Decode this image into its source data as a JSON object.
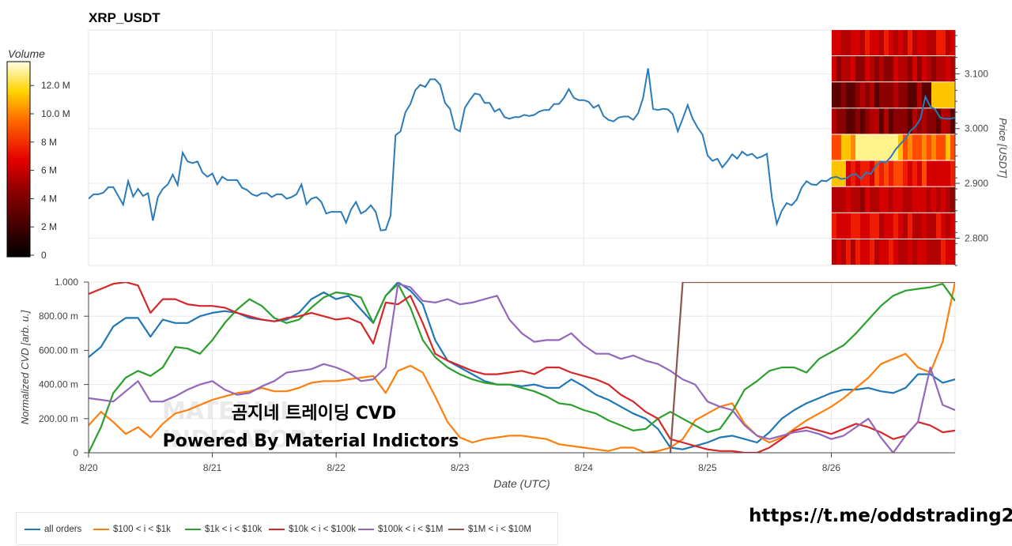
{
  "chart_data": [
    {
      "type": "line",
      "title": "XRP_USDT",
      "ylabel": "Price [USDT]",
      "ylim": [
        2.75,
        3.18
      ],
      "yticks": [
        "2.800",
        "2.900",
        "3.000",
        "3.100"
      ],
      "xlim": [
        "2025-08-20 00:00",
        "2025-08-27 00:00"
      ],
      "x": [
        0.0,
        0.04,
        0.08,
        0.12,
        0.16,
        0.2,
        0.24,
        0.28,
        0.32,
        0.36,
        0.4,
        0.44,
        0.48,
        0.52,
        0.56,
        0.6,
        0.64,
        0.68,
        0.72,
        0.76,
        0.8,
        0.84,
        0.88,
        0.92,
        0.96,
        1.0,
        1.04,
        1.08,
        1.12,
        1.16,
        1.2,
        1.24,
        1.28,
        1.32,
        1.36,
        1.4,
        1.44,
        1.48,
        1.52,
        1.56,
        1.6,
        1.64,
        1.68,
        1.72,
        1.76,
        1.8,
        1.84,
        1.88,
        1.92,
        1.96,
        2.0,
        2.04,
        2.08,
        2.12,
        2.16,
        2.2,
        2.24,
        2.28,
        2.32,
        2.36,
        2.4,
        2.44,
        2.48,
        2.52,
        2.56,
        2.6,
        2.64,
        2.68,
        2.72,
        2.76,
        2.8,
        2.84,
        2.88,
        2.92,
        2.96,
        3.0,
        3.04,
        3.08,
        3.12,
        3.16,
        3.2,
        3.24,
        3.28,
        3.32,
        3.36,
        3.4,
        3.44,
        3.48,
        3.52,
        3.56,
        3.6,
        3.64,
        3.68,
        3.72,
        3.76,
        3.8,
        3.84,
        3.88,
        3.92,
        3.96,
        4.0,
        4.04,
        4.08,
        4.12,
        4.16,
        4.2,
        4.24,
        4.28,
        4.32,
        4.36,
        4.4,
        4.44,
        4.48,
        4.52,
        4.56,
        4.6,
        4.64,
        4.68,
        4.72,
        4.76,
        4.8,
        4.84,
        4.88,
        4.92,
        4.96,
        5.0,
        5.04,
        5.08,
        5.12,
        5.16,
        5.2,
        5.24,
        5.28,
        5.32,
        5.36,
        5.4,
        5.44,
        5.48,
        5.52,
        5.56,
        5.6,
        5.64,
        5.68,
        5.72,
        5.76,
        5.8,
        5.84,
        5.88,
        5.92,
        5.96,
        6.0,
        6.04,
        6.08,
        6.12,
        6.16,
        6.2,
        6.24,
        6.28,
        6.32,
        6.36,
        6.4,
        6.44,
        6.48,
        6.52,
        6.56,
        6.6,
        6.64,
        6.68,
        6.72,
        6.76,
        6.8,
        6.84,
        6.88,
        6.92,
        6.96,
        7.0
      ],
      "series": [
        {
          "values": [
            2.872,
            2.88,
            2.88,
            2.883,
            2.893,
            2.893,
            2.877,
            2.861,
            2.904,
            2.876,
            2.89,
            2.877,
            2.882,
            2.832,
            2.875,
            2.89,
            2.898,
            2.916,
            2.897,
            2.956,
            2.94,
            2.937,
            2.94,
            2.92,
            2.912,
            2.918,
            2.898,
            2.912,
            2.906,
            2.906,
            2.906,
            2.892,
            2.888,
            2.88,
            2.877,
            2.882,
            2.882,
            2.875,
            2.88,
            2.88,
            2.872,
            2.875,
            2.88,
            2.898,
            2.862,
            2.872,
            2.875,
            2.866,
            2.845,
            2.848,
            2.848,
            2.848,
            2.828,
            2.852,
            2.866,
            2.845,
            2.85,
            2.86,
            2.848,
            2.814,
            2.815,
            2.841,
            2.988,
            2.995,
            3.03,
            3.045,
            3.07,
            3.08,
            3.076,
            3.09,
            3.09,
            3.08,
            3.047,
            3.036,
            3.0,
            2.995,
            3.038,
            3.052,
            3.064,
            3.062,
            3.047,
            3.047,
            3.031,
            3.036,
            3.021,
            3.018,
            3.021,
            3.021,
            3.025,
            3.023,
            3.025,
            3.031,
            3.034,
            3.034,
            3.045,
            3.045,
            3.056,
            3.072,
            3.056,
            3.052,
            3.052,
            3.049,
            3.038,
            3.043,
            3.023,
            3.016,
            3.013,
            3.02,
            3.022,
            3.022,
            3.016,
            3.028,
            3.056,
            3.11,
            3.036,
            3.034,
            3.036,
            3.035,
            3.026,
            2.995,
            3.018,
            3.043,
            3.018,
            3.002,
            2.989,
            2.951,
            2.941,
            2.945,
            2.929,
            2.94,
            2.953,
            2.945,
            2.958,
            2.951,
            2.954,
            2.946,
            2.949,
            2.954,
            2.874,
            2.826,
            2.85,
            2.864,
            2.86,
            2.87,
            2.892,
            2.904,
            2.898,
            2.897,
            2.905,
            2.904,
            2.91,
            2.912,
            2.908,
            2.909,
            2.915,
            2.917,
            2.908,
            2.92,
            2.917,
            2.932,
            2.94,
            2.938,
            2.948,
            2.962,
            2.972,
            2.982,
            2.996,
            3.004,
            3.018,
            3.058,
            3.04,
            3.035,
            3.02,
            3.018,
            3.018,
            3.02
          ]
        }
      ]
    },
    {
      "type": "line",
      "xlabel": "Date (UTC)",
      "ylabel": "Normalized CVD [arb. u.]",
      "ylim": [
        0,
        1000
      ],
      "yticks": [
        "0",
        "200.00 m",
        "400.00 m",
        "600.00 m",
        "800.00 m",
        "1.000"
      ],
      "categories": [
        "8/20",
        "8/21",
        "8/22",
        "8/23",
        "8/24",
        "8/25",
        "8/26"
      ],
      "xlim": [
        "2025-08-20 00:00",
        "2025-08-27 00:00"
      ],
      "x": [
        0.0,
        0.1,
        0.2,
        0.3,
        0.4,
        0.5,
        0.6,
        0.7,
        0.8,
        0.9,
        1.0,
        1.1,
        1.2,
        1.3,
        1.4,
        1.5,
        1.6,
        1.7,
        1.8,
        1.9,
        2.0,
        2.1,
        2.2,
        2.3,
        2.4,
        2.5,
        2.6,
        2.7,
        2.8,
        2.9,
        3.0,
        3.1,
        3.2,
        3.3,
        3.4,
        3.5,
        3.6,
        3.7,
        3.8,
        3.9,
        4.0,
        4.1,
        4.2,
        4.3,
        4.4,
        4.5,
        4.6,
        4.7,
        4.8,
        4.9,
        5.0,
        5.1,
        5.2,
        5.3,
        5.4,
        5.5,
        5.6,
        5.7,
        5.8,
        5.9,
        6.0,
        6.1,
        6.2,
        6.3,
        6.4,
        6.5,
        6.6,
        6.7,
        6.8,
        6.9,
        7.0
      ],
      "series": [
        {
          "name": "all orders",
          "color": "#1f77b4",
          "values": [
            560,
            620,
            740,
            790,
            790,
            680,
            780,
            760,
            760,
            800,
            820,
            830,
            820,
            790,
            780,
            770,
            780,
            820,
            900,
            940,
            900,
            920,
            840,
            760,
            920,
            1000,
            950,
            870,
            660,
            540,
            500,
            460,
            420,
            400,
            400,
            390,
            400,
            380,
            380,
            430,
            390,
            340,
            310,
            270,
            230,
            200,
            140,
            30,
            20,
            40,
            60,
            90,
            100,
            80,
            60,
            120,
            200,
            250,
            290,
            320,
            350,
            370,
            370,
            380,
            360,
            350,
            380,
            460,
            460,
            410,
            430
          ]
        },
        {
          "name": "$100 < i < $1k",
          "color": "#ff7f0e",
          "values": [
            160,
            240,
            180,
            110,
            150,
            90,
            170,
            230,
            250,
            280,
            310,
            330,
            350,
            360,
            380,
            360,
            360,
            380,
            410,
            420,
            420,
            430,
            440,
            450,
            350,
            480,
            510,
            470,
            330,
            180,
            90,
            60,
            80,
            90,
            100,
            100,
            90,
            80,
            50,
            40,
            30,
            20,
            10,
            30,
            30,
            0,
            10,
            30,
            80,
            190,
            230,
            270,
            290,
            170,
            100,
            60,
            90,
            140,
            190,
            230,
            270,
            320,
            380,
            440,
            520,
            550,
            580,
            500,
            470,
            650,
            1000
          ]
        },
        {
          "name": "$1k < i < $10k",
          "color": "#2ca02c",
          "values": [
            0,
            150,
            350,
            440,
            480,
            450,
            500,
            620,
            610,
            580,
            660,
            760,
            840,
            900,
            860,
            790,
            760,
            780,
            850,
            910,
            940,
            930,
            910,
            760,
            920,
            990,
            850,
            660,
            560,
            500,
            460,
            430,
            410,
            400,
            400,
            380,
            360,
            330,
            290,
            280,
            250,
            230,
            190,
            160,
            130,
            140,
            200,
            240,
            200,
            160,
            120,
            140,
            240,
            370,
            420,
            480,
            500,
            500,
            470,
            550,
            590,
            630,
            700,
            780,
            860,
            920,
            950,
            960,
            970,
            990,
            890
          ]
        },
        {
          "name": "$10k < i < $100k",
          "color": "#d62728",
          "values": [
            930,
            960,
            990,
            1000,
            980,
            820,
            900,
            900,
            870,
            860,
            860,
            850,
            820,
            800,
            780,
            770,
            790,
            800,
            820,
            800,
            780,
            790,
            760,
            640,
            880,
            870,
            920,
            760,
            580,
            540,
            510,
            480,
            460,
            460,
            470,
            480,
            460,
            500,
            500,
            470,
            450,
            430,
            400,
            340,
            300,
            240,
            200,
            80,
            60,
            40,
            20,
            10,
            10,
            0,
            0,
            30,
            80,
            130,
            150,
            130,
            110,
            140,
            170,
            150,
            120,
            80,
            100,
            180,
            160,
            120,
            130
          ]
        },
        {
          "name": "$100k < i < $1M",
          "color": "#9467bd",
          "values": [
            320,
            310,
            300,
            360,
            420,
            300,
            300,
            330,
            370,
            400,
            420,
            370,
            340,
            350,
            390,
            420,
            470,
            480,
            490,
            520,
            500,
            470,
            420,
            430,
            500,
            990,
            970,
            890,
            880,
            900,
            870,
            880,
            900,
            920,
            780,
            700,
            650,
            660,
            660,
            700,
            630,
            580,
            580,
            550,
            570,
            540,
            520,
            480,
            430,
            400,
            300,
            270,
            250,
            160,
            100,
            80,
            100,
            120,
            130,
            110,
            80,
            100,
            150,
            200,
            90,
            0,
            100,
            180,
            500,
            280,
            250
          ]
        },
        {
          "name": "$1M < i < $10M",
          "color": "#8c564b",
          "values": [
            null,
            null,
            null,
            null,
            null,
            null,
            null,
            null,
            null,
            null,
            null,
            null,
            null,
            null,
            null,
            null,
            null,
            null,
            null,
            null,
            null,
            null,
            null,
            null,
            null,
            null,
            null,
            null,
            null,
            null,
            null,
            null,
            null,
            null,
            null,
            null,
            null,
            null,
            null,
            null,
            null,
            null,
            null,
            null,
            null,
            null,
            null,
            0,
            1000,
            1000,
            1000,
            1000,
            1000,
            1000,
            1000,
            1000,
            1000,
            1000,
            1000,
            1000,
            1000,
            1000,
            1000,
            1000,
            1000,
            1000,
            1000,
            1000,
            1000,
            1000,
            1000
          ]
        }
      ]
    }
  ],
  "volume_colorbar": {
    "title": "Volume",
    "ticks": [
      "0",
      "2 M",
      "4 M",
      "6 M",
      "8 M",
      "10.0 M",
      "12.0 M"
    ]
  },
  "legend": [
    "all orders",
    "$100 < i < $1k",
    "$1k < i < $10k",
    "$10k < i < $100k",
    "$100k < i < $1M",
    "$1M < i < $10M"
  ],
  "watermark": {
    "line1": "곰지네 트레이딩 CVD",
    "line2": "Powered By Material Indictors",
    "background": "MATERIAL INDICATORS"
  },
  "footer_url": "https://t.me/oddstrading2"
}
